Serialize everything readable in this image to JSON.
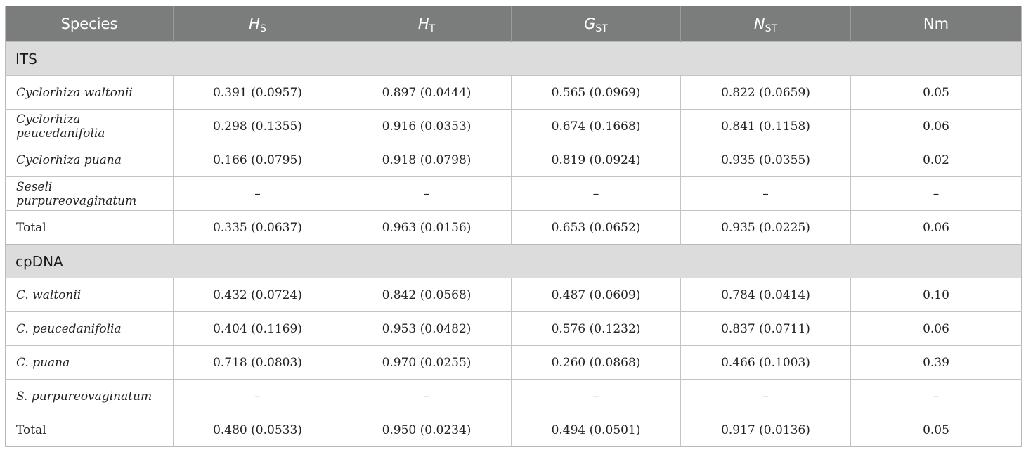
{
  "header": {
    "species": "Species",
    "hs": {
      "sym": "H",
      "sub": "S"
    },
    "ht": {
      "sym": "H",
      "sub": "T"
    },
    "gst": {
      "sym": "G",
      "sub": "ST"
    },
    "nst": {
      "sym": "N",
      "sub": "ST"
    },
    "nm": "Nm"
  },
  "sections": [
    {
      "title": "ITS",
      "rows": [
        {
          "species": "Cyclorhiza waltonii",
          "italic": true,
          "hs": "0.391 (0.0957)",
          "ht": "0.897 (0.0444)",
          "gst": "0.565 (0.0969)",
          "nst": "0.822 (0.0659)",
          "nm": "0.05"
        },
        {
          "species": "Cyclorhiza peucedanifolia",
          "italic": true,
          "hs": "0.298 (0.1355)",
          "ht": "0.916 (0.0353)",
          "gst": "0.674 (0.1668)",
          "nst": "0.841 (0.1158)",
          "nm": "0.06"
        },
        {
          "species": "Cyclorhiza puana",
          "italic": true,
          "hs": "0.166 (0.0795)",
          "ht": "0.918 (0.0798)",
          "gst": "0.819 (0.0924)",
          "nst": "0.935 (0.0355)",
          "nm": "0.02"
        },
        {
          "species": "Seseli purpureovaginatum",
          "italic": true,
          "hs": "–",
          "ht": "–",
          "gst": "–",
          "nst": "–",
          "nm": "–"
        },
        {
          "species": "Total",
          "italic": false,
          "hs": "0.335 (0.0637)",
          "ht": "0.963 (0.0156)",
          "gst": "0.653 (0.0652)",
          "nst": "0.935 (0.0225)",
          "nm": "0.06"
        }
      ]
    },
    {
      "title": "cpDNA",
      "rows": [
        {
          "species": "C. waltonii",
          "italic": true,
          "hs": "0.432 (0.0724)",
          "ht": "0.842 (0.0568)",
          "gst": "0.487 (0.0609)",
          "nst": "0.784 (0.0414)",
          "nm": "0.10"
        },
        {
          "species": "C. peucedanifolia",
          "italic": true,
          "hs": "0.404 (0.1169)",
          "ht": "0.953 (0.0482)",
          "gst": "0.576 (0.1232)",
          "nst": "0.837 (0.0711)",
          "nm": "0.06"
        },
        {
          "species": "C. puana",
          "italic": true,
          "hs": "0.718 (0.0803)",
          "ht": "0.970 (0.0255)",
          "gst": "0.260 (0.0868)",
          "nst": "0.466 (0.1003)",
          "nm": "0.39"
        },
        {
          "species": "S. purpureovaginatum",
          "italic": true,
          "hs": "–",
          "ht": "–",
          "gst": "–",
          "nst": "–",
          "nm": "–"
        },
        {
          "species": "Total",
          "italic": false,
          "hs": "0.480 (0.0533)",
          "ht": "0.950 (0.0234)",
          "gst": "0.494 (0.0501)",
          "nst": "0.917 (0.0136)",
          "nm": "0.05"
        }
      ]
    }
  ]
}
